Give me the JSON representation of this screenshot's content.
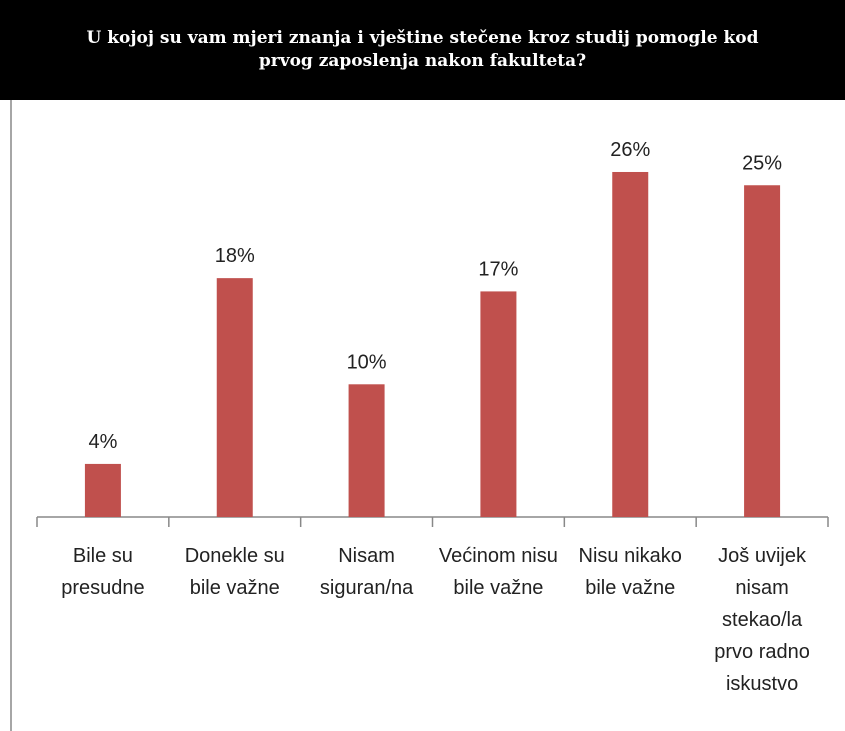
{
  "chart_data": {
    "type": "bar",
    "title": "U kojoj su vam mjeri znanja i vještine stečene kroz studij pomogle kod prvog zaposlenja nakon fakulteta?",
    "categories": [
      "Bile su presudne",
      "Donekle su bile važne",
      "Nisam siguran/na",
      "Većinom nisu bile važne",
      "Nisu nikako bile važne",
      "Još uvijek nisam stekao/la prvo radno iskustvo"
    ],
    "values": [
      4,
      18,
      10,
      17,
      26,
      25
    ],
    "value_labels": [
      "4%",
      "18%",
      "10%",
      "17%",
      "26%",
      "25%"
    ],
    "color": "#c0504d"
  }
}
